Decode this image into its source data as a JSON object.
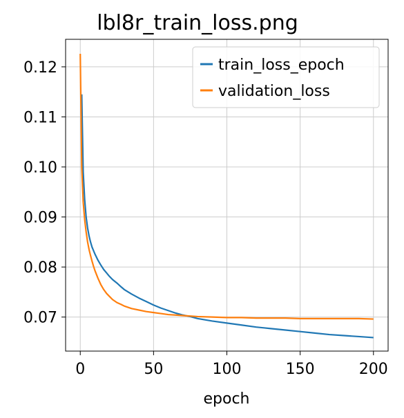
{
  "chart_data": {
    "type": "line",
    "title": "lbl8r_train_loss.png",
    "xlabel": "epoch",
    "ylabel": "",
    "xlim": [
      -10,
      210
    ],
    "ylim": [
      0.0632,
      0.1255
    ],
    "xticks": [
      0,
      50,
      100,
      150,
      200
    ],
    "yticks": [
      0.07,
      0.08,
      0.09,
      0.1,
      0.11,
      0.12
    ],
    "xtick_labels": [
      "0",
      "50",
      "100",
      "150",
      "200"
    ],
    "ytick_labels": [
      "0.07",
      "0.08",
      "0.09",
      "0.10",
      "0.11",
      "0.12"
    ],
    "grid": true,
    "legend_position": "top-right",
    "series": [
      {
        "name": "train_loss_epoch",
        "color": "#1f77b4",
        "points": [
          [
            1,
            0.1145
          ],
          [
            2,
            0.099
          ],
          [
            3,
            0.0935
          ],
          [
            4,
            0.09
          ],
          [
            5,
            0.0878
          ],
          [
            6,
            0.0862
          ],
          [
            7,
            0.085
          ],
          [
            8,
            0.084
          ],
          [
            10,
            0.0826
          ],
          [
            12,
            0.0814
          ],
          [
            14,
            0.0804
          ],
          [
            16,
            0.0795
          ],
          [
            18,
            0.0788
          ],
          [
            20,
            0.0781
          ],
          [
            22,
            0.0775
          ],
          [
            25,
            0.0768
          ],
          [
            28,
            0.076
          ],
          [
            30,
            0.0755
          ],
          [
            35,
            0.0746
          ],
          [
            40,
            0.0738
          ],
          [
            45,
            0.0731
          ],
          [
            50,
            0.0724
          ],
          [
            55,
            0.0718
          ],
          [
            60,
            0.0713
          ],
          [
            65,
            0.0708
          ],
          [
            70,
            0.0704
          ],
          [
            75,
            0.0701
          ],
          [
            80,
            0.0697
          ],
          [
            90,
            0.0692
          ],
          [
            100,
            0.0688
          ],
          [
            110,
            0.0684
          ],
          [
            120,
            0.068
          ],
          [
            130,
            0.0677
          ],
          [
            140,
            0.0674
          ],
          [
            150,
            0.0671
          ],
          [
            160,
            0.0668
          ],
          [
            170,
            0.0665
          ],
          [
            180,
            0.0663
          ],
          [
            190,
            0.0661
          ],
          [
            200,
            0.0659
          ]
        ]
      },
      {
        "name": "validation_loss",
        "color": "#ff7f0e",
        "points": [
          [
            0,
            0.1226
          ],
          [
            1,
            0.1
          ],
          [
            2,
            0.093
          ],
          [
            3,
            0.0895
          ],
          [
            4,
            0.087
          ],
          [
            5,
            0.085
          ],
          [
            6,
            0.0835
          ],
          [
            7,
            0.0823
          ],
          [
            8,
            0.0812
          ],
          [
            9,
            0.0802
          ],
          [
            10,
            0.0793
          ],
          [
            12,
            0.0778
          ],
          [
            14,
            0.0765
          ],
          [
            16,
            0.0755
          ],
          [
            18,
            0.0747
          ],
          [
            20,
            0.0741
          ],
          [
            22,
            0.0735
          ],
          [
            25,
            0.0729
          ],
          [
            28,
            0.0725
          ],
          [
            30,
            0.0722
          ],
          [
            35,
            0.0717
          ],
          [
            40,
            0.0714
          ],
          [
            45,
            0.0711
          ],
          [
            50,
            0.0709
          ],
          [
            55,
            0.0707
          ],
          [
            60,
            0.0705
          ],
          [
            65,
            0.0704
          ],
          [
            70,
            0.0703
          ],
          [
            80,
            0.0701
          ],
          [
            90,
            0.07
          ],
          [
            100,
            0.0699
          ],
          [
            110,
            0.0699
          ],
          [
            120,
            0.0698
          ],
          [
            130,
            0.0698
          ],
          [
            140,
            0.0698
          ],
          [
            150,
            0.0697
          ],
          [
            160,
            0.0697
          ],
          [
            170,
            0.0697
          ],
          [
            180,
            0.0697
          ],
          [
            190,
            0.0697
          ],
          [
            200,
            0.0696
          ]
        ]
      }
    ]
  }
}
